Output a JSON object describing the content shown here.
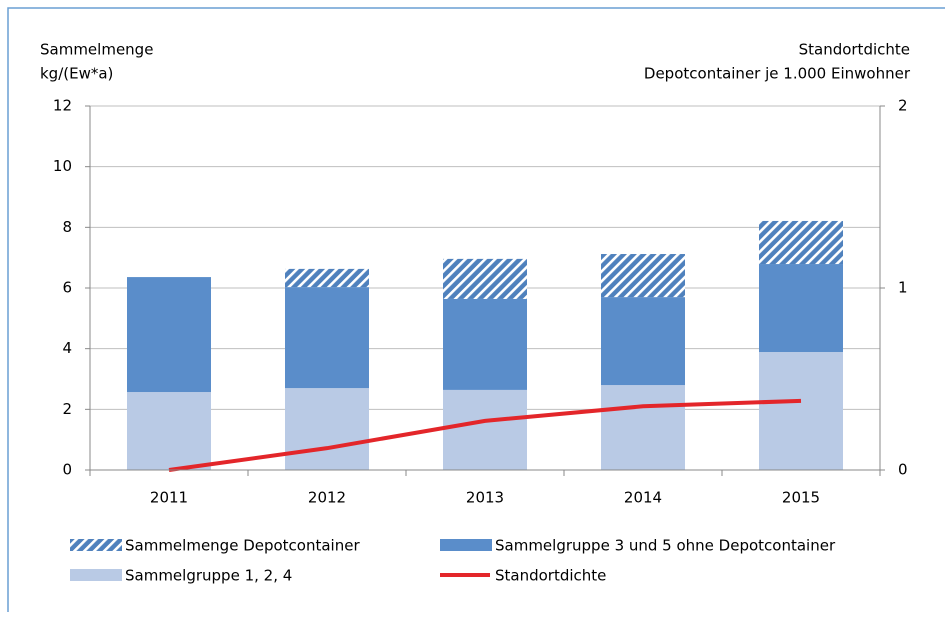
{
  "chart_data": {
    "type": "bar",
    "y_label": [
      "Sammelmenge",
      "kg/(Ew*a)"
    ],
    "y2_label": [
      "Standortdichte",
      "Depotcontainer je 1.000 Einwohner"
    ],
    "categories": [
      "2011",
      "2012",
      "2013",
      "2014",
      "2015"
    ],
    "series": [
      {
        "name": "Sammelgruppe 1, 2, 4",
        "color": "#b9cae5",
        "values": [
          2.57,
          2.7,
          2.64,
          2.8,
          3.89
        ]
      },
      {
        "name": "Sammelgruppe 3 und 5 ohne Depotcontainer",
        "color": "#5a8dca",
        "values": [
          3.79,
          3.33,
          3.0,
          2.9,
          2.9
        ]
      },
      {
        "name": "Sammelmenge Depotcontainer",
        "color": "#4f81bd",
        "hatched": true,
        "values": [
          0,
          0.6,
          1.32,
          1.42,
          1.42
        ]
      },
      {
        "name": "Standortdichte",
        "color": "#e3262a",
        "type": "line",
        "axis": "y2",
        "values": [
          0,
          0.12,
          0.27,
          0.35,
          0.38
        ]
      }
    ],
    "ylim": [
      0,
      12
    ],
    "yticks": [
      0,
      2,
      4,
      6,
      8,
      10,
      12
    ],
    "y2lim": [
      0,
      2
    ],
    "y2ticks": [
      0,
      1,
      2
    ],
    "grid": true
  }
}
